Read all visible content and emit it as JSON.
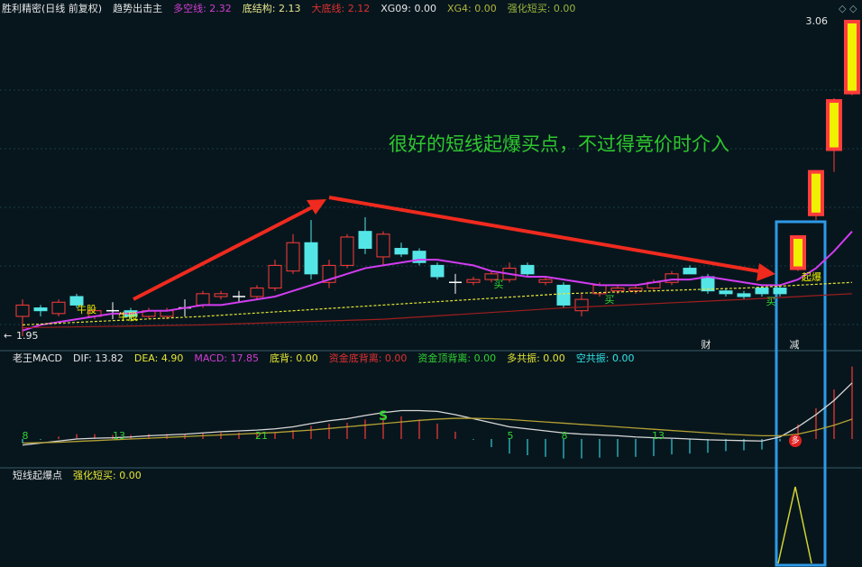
{
  "price_panel": {
    "header": [
      {
        "text": "胜利精密(日线 前复权)",
        "color": "#e6e6e6"
      },
      {
        "text": "趋势出击主",
        "color": "#e6e6e6"
      },
      {
        "text": "多空线: 2.32",
        "color": "#d23cd2"
      },
      {
        "text": "底结构: 2.13",
        "color": "#e6e68c"
      },
      {
        "text": "大底线: 2.12",
        "color": "#e03030"
      },
      {
        "text": "XG09: 0.00",
        "color": "#e6e6e6"
      },
      {
        "text": "XG4: 0.00",
        "color": "#b4b43c"
      },
      {
        "text": "强化短买: 0.00",
        "color": "#9ab43c"
      }
    ],
    "high_label": {
      "value": 3.06,
      "label": "3.06"
    },
    "low_label": {
      "value": 1.95,
      "label": "1.95"
    },
    "annotation": "很好的短线起爆买点，不过得竞价时介入",
    "signals": [
      "牛股",
      "牛股",
      "买",
      "买",
      "买",
      "起爆",
      "财",
      "减"
    ],
    "candles": [
      [
        2.02,
        2.08,
        1.95,
        2.06
      ],
      [
        2.05,
        2.06,
        2.02,
        2.04
      ],
      [
        2.03,
        2.08,
        2.02,
        2.07
      ],
      [
        2.09,
        2.1,
        2.05,
        2.06
      ],
      [
        2.02,
        2.05,
        2.01,
        2.04
      ],
      [
        2.04,
        2.07,
        2.01,
        2.04
      ],
      [
        2.04,
        2.05,
        2.01,
        2.02
      ],
      [
        2.02,
        2.05,
        2.01,
        2.04
      ],
      [
        2.02,
        2.05,
        2.01,
        2.04
      ],
      [
        2.05,
        2.08,
        2.02,
        2.05
      ],
      [
        2.06,
        2.11,
        2.05,
        2.1
      ],
      [
        2.09,
        2.11,
        2.08,
        2.1
      ],
      [
        2.09,
        2.11,
        2.07,
        2.09
      ],
      [
        2.09,
        2.13,
        2.08,
        2.12
      ],
      [
        2.12,
        2.22,
        2.11,
        2.2
      ],
      [
        2.18,
        2.31,
        2.17,
        2.28
      ],
      [
        2.28,
        2.36,
        2.15,
        2.17
      ],
      [
        2.14,
        2.22,
        2.12,
        2.2
      ],
      [
        2.2,
        2.31,
        2.19,
        2.3
      ],
      [
        2.32,
        2.37,
        2.24,
        2.26
      ],
      [
        2.23,
        2.32,
        2.2,
        2.31
      ],
      [
        2.26,
        2.28,
        2.23,
        2.24
      ],
      [
        2.25,
        2.26,
        2.2,
        2.21
      ],
      [
        2.2,
        2.21,
        2.15,
        2.16
      ],
      [
        2.14,
        2.17,
        2.1,
        2.14
      ],
      [
        2.14,
        2.16,
        2.13,
        2.15
      ],
      [
        2.15,
        2.18,
        2.14,
        2.17
      ],
      [
        2.15,
        2.21,
        2.14,
        2.19
      ],
      [
        2.2,
        2.21,
        2.16,
        2.17
      ],
      [
        2.14,
        2.16,
        2.13,
        2.15
      ],
      [
        2.13,
        2.14,
        2.05,
        2.06
      ],
      [
        2.04,
        2.1,
        2.02,
        2.08
      ],
      [
        2.1,
        2.14,
        2.09,
        2.13
      ],
      [
        2.11,
        2.13,
        2.1,
        2.12
      ],
      [
        2.11,
        2.13,
        2.1,
        2.12
      ],
      [
        2.12,
        2.15,
        2.11,
        2.14
      ],
      [
        2.14,
        2.18,
        2.13,
        2.17
      ],
      [
        2.19,
        2.2,
        2.17,
        2.17
      ],
      [
        2.16,
        2.17,
        2.1,
        2.11
      ],
      [
        2.11,
        2.12,
        2.09,
        2.1
      ],
      [
        2.1,
        2.11,
        2.08,
        2.09
      ],
      [
        2.12,
        2.13,
        2.09,
        2.1
      ],
      [
        2.12,
        2.13,
        2.09,
        2.1
      ],
      [
        2.19,
        2.3,
        2.18,
        2.3
      ],
      [
        2.38,
        2.53,
        2.36,
        2.53
      ],
      [
        2.61,
        2.79,
        2.53,
        2.78
      ],
      [
        2.81,
        3.06,
        2.8,
        3.06
      ]
    ],
    "lines": [
      {
        "color": "#d23cf0",
        "dash": false,
        "x": [
          0,
          1,
          2,
          3,
          4,
          5,
          6,
          7,
          8,
          9,
          10,
          11,
          12,
          13,
          14,
          15,
          16,
          17,
          18,
          19,
          20,
          21,
          22,
          23,
          24,
          25,
          26,
          27,
          28,
          29,
          30,
          31,
          32,
          33,
          34,
          35,
          36,
          37,
          38,
          39,
          40,
          41,
          42,
          43,
          44,
          45,
          46
        ],
        "values": [
          1.97,
          1.99,
          2.0,
          2.01,
          2.02,
          2.03,
          2.03,
          2.04,
          2.04,
          2.05,
          2.06,
          2.06,
          2.07,
          2.08,
          2.09,
          2.11,
          2.13,
          2.15,
          2.17,
          2.19,
          2.2,
          2.21,
          2.22,
          2.22,
          2.21,
          2.2,
          2.18,
          2.17,
          2.16,
          2.16,
          2.15,
          2.14,
          2.13,
          2.13,
          2.13,
          2.14,
          2.15,
          2.15,
          2.16,
          2.15,
          2.14,
          2.13,
          2.13,
          2.15,
          2.19,
          2.25,
          2.32
        ]
      },
      {
        "color": "#e6e632",
        "dash": true,
        "x": [
          0,
          10,
          20,
          30,
          40,
          46
        ],
        "values": [
          1.99,
          2.02,
          2.06,
          2.1,
          2.12,
          2.14
        ]
      },
      {
        "color": "#a01e1e",
        "dash": false,
        "x": [
          0,
          10,
          20,
          30,
          40,
          46
        ],
        "values": [
          1.98,
          1.99,
          2.01,
          2.05,
          2.08,
          2.1
        ]
      }
    ]
  },
  "macd_panel": {
    "header": [
      {
        "text": "老王MACD",
        "color": "#e6e6e6"
      },
      {
        "text": "DIF: 13.82",
        "color": "#e6e6e6"
      },
      {
        "text": "DEA: 4.90",
        "color": "#e6e632"
      },
      {
        "text": "MACD: 17.85",
        "color": "#d23cd2"
      },
      {
        "text": "底背: 0.00",
        "color": "#e6e632"
      },
      {
        "text": "资金底背离: 0.00",
        "color": "#e03030"
      },
      {
        "text": "资金顶背离: 0.00",
        "color": "#32d232"
      },
      {
        "text": "多共振: 0.00",
        "color": "#e6e632"
      },
      {
        "text": "空共振: 0.00",
        "color": "#32e6e6"
      }
    ],
    "counts": [
      "8",
      "13",
      "21",
      "5",
      "8",
      "13"
    ],
    "signals": [
      "S",
      "多"
    ],
    "dif": [
      -1.5,
      -1,
      -0.5,
      0,
      0.2,
      0.3,
      0.5,
      0.8,
      1,
      1.2,
      1.5,
      1.8,
      2,
      2.2,
      2.5,
      3,
      3.8,
      4.5,
      5,
      5.8,
      6.5,
      7,
      7,
      6.8,
      6,
      5,
      4,
      3,
      2.5,
      2,
      1.5,
      1.2,
      1,
      0.8,
      0.5,
      0.3,
      0.2,
      0,
      -0.2,
      -0.3,
      -0.4,
      -0.5,
      0.5,
      3,
      6,
      9.5,
      13.82
    ],
    "dea": [
      -1,
      -0.9,
      -0.8,
      -0.6,
      -0.4,
      -0.2,
      0,
      0.2,
      0.4,
      0.6,
      0.8,
      1,
      1.2,
      1.4,
      1.6,
      1.9,
      2.2,
      2.6,
      3,
      3.4,
      3.8,
      4.2,
      4.6,
      4.9,
      5.1,
      5.1,
      5,
      4.8,
      4.5,
      4.2,
      3.9,
      3.6,
      3.3,
      3,
      2.7,
      2.4,
      2.1,
      1.8,
      1.5,
      1.2,
      1,
      0.8,
      0.8,
      1.2,
      2.2,
      3.4,
      4.9
    ],
    "macd": [
      -1,
      -0.2,
      0.6,
      1.2,
      1.2,
      1,
      1,
      1.2,
      1.2,
      1.2,
      1.4,
      1.6,
      1.6,
      1.6,
      1.8,
      2.2,
      3.2,
      3.8,
      4,
      4.8,
      5.4,
      5.6,
      4.8,
      3.8,
      1.8,
      -0.2,
      -2,
      -3.6,
      -4,
      -4.4,
      -4.8,
      -4.8,
      -4.6,
      -4.4,
      -4.4,
      -4.2,
      -3.8,
      -3.6,
      -3.4,
      -3,
      -2.8,
      -2.6,
      -0.6,
      3.6,
      7.6,
      12.2,
      17.85
    ]
  },
  "signal_panel": {
    "header": [
      {
        "text": "短线起爆点",
        "color": "#e6e6e6"
      },
      {
        "text": "强化短买: 0.00",
        "color": "#e6e632"
      }
    ]
  }
}
